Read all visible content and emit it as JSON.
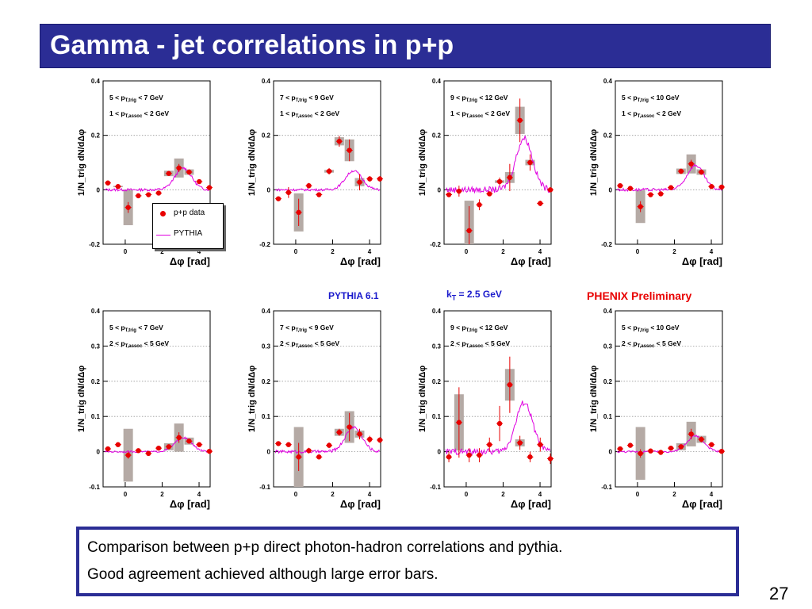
{
  "title": "Gamma - jet correlations in p+p",
  "caption": {
    "line1": "Comparison between p+p direct photon-hadron correlations and pythia.",
    "line2": "Good agreement achieved although large error bars."
  },
  "page_number": "27",
  "labels": {
    "pythia_version": "PYTHIA 6.1",
    "kt_prefix": "k",
    "kt_sub": "T",
    "kt_suffix": " = 2.5 GeV",
    "preliminary": "PHENIX Preliminary"
  },
  "legend": {
    "data_label": "p+p data",
    "model_label": "PYTHIA"
  },
  "colors": {
    "title_bar": "#2b2d95",
    "data": "#e80000",
    "model": "#e000e0",
    "sys_band": "#b5aaa5",
    "grid": "#999999"
  },
  "chart_data": [
    {
      "type": "scatter",
      "ylabel": "1/N_trig dN/dΔφ",
      "xlabel": "Δφ [rad]",
      "ylim": [
        -0.2,
        0.4
      ],
      "yticks": [
        -0.2,
        0,
        0.2,
        0.4
      ],
      "ytick_labels": [
        "-0.2",
        "0",
        "0.2",
        "0.4"
      ],
      "trig_range": [
        "5 < p",
        "T,trig",
        " < 7 GeV"
      ],
      "assoc_range": [
        "1 < p",
        "T,assoc",
        " < 2 GeV"
      ],
      "x": [
        -0.94,
        -0.39,
        0.16,
        0.71,
        1.26,
        1.81,
        2.36,
        2.91,
        3.46,
        4.01,
        4.56
      ],
      "y": [
        0.025,
        0.012,
        -0.065,
        -0.022,
        -0.018,
        -0.012,
        0.06,
        0.08,
        0.065,
        0.03,
        0.008
      ],
      "err": [
        0.006,
        0.006,
        0.02,
        0.006,
        0.006,
        0.006,
        0.008,
        0.015,
        0.01,
        0.006,
        0.005
      ],
      "sys": [
        0,
        0.005,
        0.13,
        0,
        0,
        0,
        0.02,
        0.07,
        0.02,
        0,
        0
      ],
      "pythia_peak": 0.08
    },
    {
      "type": "scatter",
      "ylabel": "1/N_trig dN/dΔφ",
      "xlabel": "Δφ [rad]",
      "ylim": [
        -0.2,
        0.4
      ],
      "yticks": [
        -0.2,
        0,
        0.2,
        0.4
      ],
      "ytick_labels": [
        "-0.2",
        "0",
        "0.2",
        "0.4"
      ],
      "trig_range": [
        "7 < p",
        "T,trig",
        " < 9 GeV"
      ],
      "assoc_range": [
        "1 < p",
        "T,assoc",
        " < 2 GeV"
      ],
      "x": [
        -0.94,
        -0.39,
        0.16,
        0.71,
        1.26,
        1.81,
        2.36,
        2.91,
        3.46,
        4.01,
        4.56
      ],
      "y": [
        -0.033,
        -0.01,
        -0.083,
        0.015,
        -0.018,
        0.068,
        0.178,
        0.145,
        0.028,
        0.04,
        0.04
      ],
      "err": [
        0.008,
        0.02,
        0.05,
        0.01,
        0.006,
        0.012,
        0.02,
        0.04,
        0.03,
        0.01,
        0.01
      ],
      "sys": [
        0,
        0,
        0.14,
        0,
        0,
        0.01,
        0.03,
        0.08,
        0.03,
        0,
        0
      ],
      "pythia_peak": 0.07
    },
    {
      "type": "scatter",
      "ylabel": "1/N_trig dN/dΔφ",
      "xlabel": "Δφ [rad]",
      "ylim": [
        -0.2,
        0.4
      ],
      "yticks": [
        -0.2,
        0,
        0.2,
        0.4
      ],
      "ytick_labels": [
        "-0.2",
        "0",
        "0.2",
        "0.4"
      ],
      "trig_range": [
        "9 < p",
        "T,trig",
        " < 12 GeV"
      ],
      "assoc_range": [
        "1 < p",
        "T,assoc",
        " < 2 GeV"
      ],
      "x": [
        -0.94,
        -0.39,
        0.16,
        0.71,
        1.26,
        1.81,
        2.36,
        2.91,
        3.46,
        4.01,
        4.56
      ],
      "y": [
        -0.018,
        -0.005,
        -0.15,
        -0.055,
        -0.015,
        0.03,
        0.045,
        0.255,
        0.1,
        -0.05,
        0
      ],
      "err": [
        0.008,
        0.02,
        0.09,
        0.02,
        0.008,
        0.015,
        0.05,
        0.08,
        0.03,
        0.01,
        0
      ],
      "sys": [
        0,
        0,
        0.22,
        0,
        0,
        0.01,
        0.04,
        0.1,
        0.02,
        0,
        0
      ],
      "pythia_peak": 0.19
    },
    {
      "type": "scatter",
      "ylabel": "1/N_trig dN/dΔφ",
      "xlabel": "Δφ [rad]",
      "ylim": [
        -0.2,
        0.4
      ],
      "yticks": [
        -0.2,
        0,
        0.2,
        0.4
      ],
      "ytick_labels": [
        "-0.2",
        "0",
        "0.2",
        "0.4"
      ],
      "trig_range": [
        "5 < p",
        "T,trig",
        " < 10 GeV"
      ],
      "assoc_range": [
        "1 < p",
        "T,assoc",
        " < 2 GeV"
      ],
      "x": [
        -0.94,
        -0.39,
        0.16,
        0.71,
        1.26,
        1.81,
        2.36,
        2.91,
        3.46,
        4.01,
        4.56
      ],
      "y": [
        0.015,
        0.005,
        -0.062,
        -0.018,
        -0.015,
        0.008,
        0.068,
        0.095,
        0.065,
        0.012,
        0.01
      ],
      "err": [
        0.006,
        0.006,
        0.02,
        0.006,
        0.006,
        0.006,
        0.01,
        0.015,
        0.01,
        0.005,
        0.004
      ],
      "sys": [
        0,
        0,
        0.12,
        0,
        0,
        0,
        0.02,
        0.07,
        0.02,
        0,
        0
      ],
      "pythia_peak": 0.09
    },
    {
      "type": "scatter",
      "ylabel": "1/N_trig dN/dΔφ",
      "xlabel": "Δφ [rad]",
      "ylim": [
        -0.1,
        0.4
      ],
      "yticks": [
        -0.1,
        0,
        0.1,
        0.2,
        0.3,
        0.4
      ],
      "ytick_labels": [
        "-0.1",
        "0",
        "0.1",
        "0.2",
        "0.3",
        "0.4"
      ],
      "trig_range": [
        "5 < p",
        "T,trig",
        " < 7 GeV"
      ],
      "assoc_range": [
        "2 < p",
        "T,assoc",
        " < 5 GeV"
      ],
      "x": [
        -0.94,
        -0.39,
        0.16,
        0.71,
        1.26,
        1.81,
        2.36,
        2.91,
        3.46,
        4.01,
        4.56
      ],
      "y": [
        0.008,
        0.02,
        -0.01,
        0.003,
        -0.005,
        0.01,
        0.014,
        0.04,
        0.03,
        0.02,
        0.001
      ],
      "err": [
        0.004,
        0.004,
        0.01,
        0.004,
        0.004,
        0.004,
        0.005,
        0.015,
        0.006,
        0.004,
        0.003
      ],
      "sys": [
        0,
        0,
        0.15,
        0,
        0,
        0,
        0.02,
        0.08,
        0.02,
        0,
        0
      ],
      "pythia_peak": 0.04
    },
    {
      "type": "scatter",
      "ylabel": "1/N_trig dN/dΔφ",
      "xlabel": "Δφ [rad]",
      "ylim": [
        -0.1,
        0.4
      ],
      "yticks": [
        -0.1,
        0,
        0.1,
        0.2,
        0.3,
        0.4
      ],
      "ytick_labels": [
        "-0.1",
        "0",
        "0.1",
        "0.2",
        "0.3",
        "0.4"
      ],
      "trig_range": [
        "7 < p",
        "T,trig",
        " < 9 GeV"
      ],
      "assoc_range": [
        "2 < p",
        "T,assoc",
        " < 5 GeV"
      ],
      "x": [
        -0.94,
        -0.39,
        0.16,
        0.71,
        1.26,
        1.81,
        2.36,
        2.91,
        3.46,
        4.01,
        4.56
      ],
      "y": [
        0.023,
        0.02,
        -0.015,
        0.003,
        -0.015,
        0.018,
        0.055,
        0.07,
        0.05,
        0.035,
        0.033
      ],
      "err": [
        0.006,
        0.006,
        0.04,
        0.008,
        0.006,
        0.008,
        0.01,
        0.04,
        0.015,
        0.01,
        0.008
      ],
      "sys": [
        0,
        0,
        0.17,
        0,
        0,
        0,
        0.02,
        0.09,
        0.02,
        0,
        0
      ],
      "pythia_peak": 0.07
    },
    {
      "type": "scatter",
      "ylabel": "1/N_trig dN/dΔφ",
      "xlabel": "Δφ [rad]",
      "ylim": [
        -0.1,
        0.4
      ],
      "yticks": [
        -0.1,
        0,
        0.1,
        0.2,
        0.3,
        0.4
      ],
      "ytick_labels": [
        "-0.1",
        "0",
        "0.1",
        "0.2",
        "0.3",
        "0.4"
      ],
      "trig_range": [
        "9 < p",
        "T,trig",
        " < 12 GeV"
      ],
      "assoc_range": [
        "2 < p",
        "T,assoc",
        " < 5 GeV"
      ],
      "x": [
        -0.94,
        -0.39,
        0.16,
        0.71,
        1.26,
        1.81,
        2.36,
        2.91,
        3.46,
        4.01,
        4.56
      ],
      "y": [
        -0.015,
        0.083,
        -0.01,
        -0.01,
        0.02,
        0.08,
        0.19,
        0.025,
        -0.015,
        0.02,
        -0.02
      ],
      "err": [
        0.015,
        0.1,
        0.02,
        0.02,
        0.02,
        0.05,
        0.08,
        0.02,
        0.015,
        0.02,
        0.015
      ],
      "sys": [
        0,
        0.16,
        0,
        0,
        0,
        0,
        0.09,
        0.02,
        0,
        0,
        0
      ],
      "pythia_peak": 0.14
    },
    {
      "type": "scatter",
      "ylabel": "1/N_trig dN/dΔφ",
      "xlabel": "Δφ [rad]",
      "ylim": [
        -0.1,
        0.4
      ],
      "yticks": [
        -0.1,
        0,
        0.1,
        0.2,
        0.3,
        0.4
      ],
      "ytick_labels": [
        "-0.1",
        "0",
        "0.1",
        "0.2",
        "0.3",
        "0.4"
      ],
      "trig_range": [
        "5 < p",
        "T,trig",
        " < 10 GeV"
      ],
      "assoc_range": [
        "2 < p",
        "T,assoc",
        " < 5 GeV"
      ],
      "x": [
        -0.94,
        -0.39,
        0.16,
        0.71,
        1.26,
        1.81,
        2.36,
        2.91,
        3.46,
        4.01,
        4.56
      ],
      "y": [
        0.008,
        0.018,
        -0.005,
        0.002,
        -0.002,
        0.01,
        0.014,
        0.05,
        0.035,
        0.02,
        0.001
      ],
      "err": [
        0.004,
        0.004,
        0.012,
        0.004,
        0.004,
        0.004,
        0.006,
        0.015,
        0.008,
        0.004,
        0.003
      ],
      "sys": [
        0,
        0,
        0.15,
        0,
        0,
        0,
        0.02,
        0.07,
        0.02,
        0,
        0
      ],
      "pythia_peak": 0.045
    }
  ]
}
